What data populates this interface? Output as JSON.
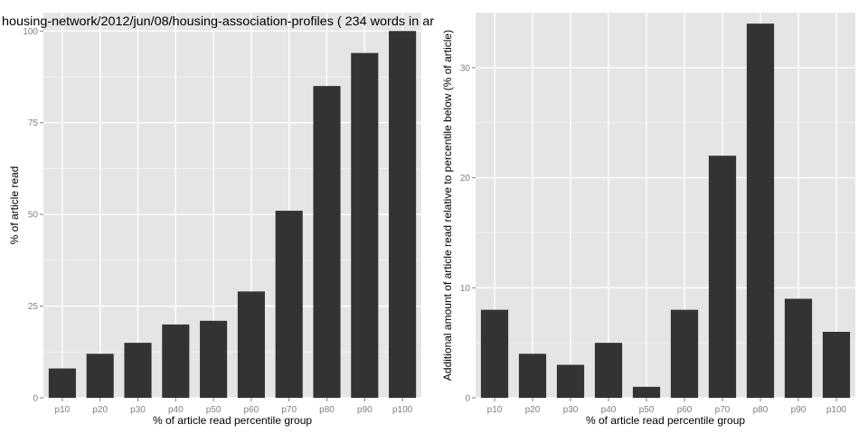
{
  "colors": {
    "panel_bg": "#e5e5e5",
    "grid_major": "#ffffff",
    "grid_minor": "#f2f2f2",
    "bar_fill": "#333333",
    "tick_text": "#7f7f7f",
    "title_text": "#000000"
  },
  "chart_data": [
    {
      "type": "bar",
      "title": "housing-network/2012/jun/08/housing-association-profiles ( 234 words in ar",
      "xlabel": "% of article read percentile group",
      "ylabel": "% of article read",
      "categories": [
        "p10",
        "p20",
        "p30",
        "p40",
        "p50",
        "p60",
        "p70",
        "p80",
        "p90",
        "p100"
      ],
      "values": [
        8,
        12,
        15,
        20,
        21,
        29,
        51,
        85,
        94,
        100
      ],
      "ylim": [
        0,
        105
      ],
      "yticks": [
        0,
        25,
        50,
        75,
        100
      ],
      "ytick_labels": [
        "0",
        "25",
        "50",
        "75",
        "100"
      ],
      "grid": true,
      "legend": "none"
    },
    {
      "type": "bar",
      "title": "",
      "xlabel": "% of article read percentile group",
      "ylabel": "Additional amount of article read relative to percentile below (% of article)",
      "categories": [
        "p10",
        "p20",
        "p30",
        "p40",
        "p50",
        "p60",
        "p70",
        "p80",
        "p90",
        "p100"
      ],
      "values": [
        8,
        4,
        3,
        5,
        1,
        8,
        22,
        34,
        9,
        6
      ],
      "ylim": [
        0,
        35
      ],
      "yticks": [
        0,
        10,
        20,
        30
      ],
      "ytick_labels": [
        "0",
        "10",
        "20",
        "30"
      ],
      "grid": true,
      "legend": "none"
    }
  ]
}
